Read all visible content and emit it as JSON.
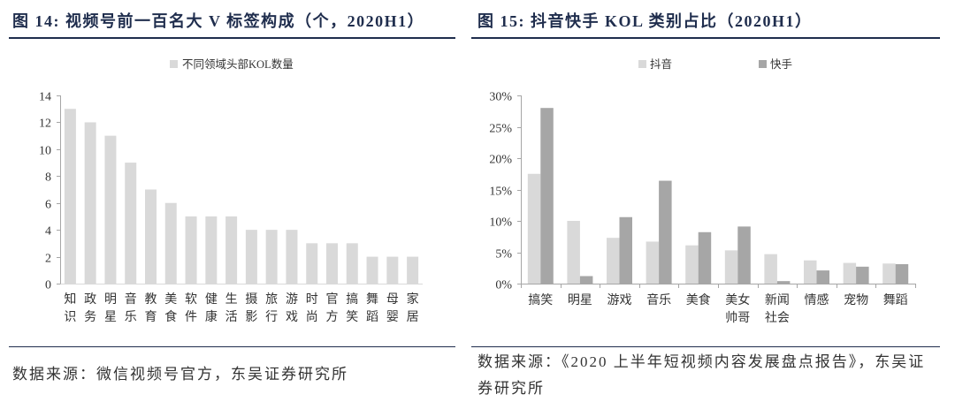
{
  "chart_data": [
    {
      "type": "bar",
      "title": "图 14: 视频号前一百名大 V 标签构成（个，2020H1）",
      "categories": [
        "知识",
        "政务",
        "明星",
        "音乐",
        "教育",
        "美食",
        "软件",
        "健康",
        "生活",
        "摄影",
        "旅行",
        "游戏",
        "时尚",
        "官方",
        "搞笑",
        "舞蹈",
        "母婴",
        "家居"
      ],
      "series": [
        {
          "name": "不同领域头部KOL数量",
          "values": [
            13,
            12,
            11,
            9,
            7,
            6,
            5,
            5,
            5,
            4,
            4,
            4,
            3,
            3,
            3,
            2,
            2,
            2
          ],
          "color": "#d9d9d9"
        }
      ],
      "ylim": [
        0,
        14
      ],
      "yticks": [
        0,
        2,
        4,
        6,
        8,
        10,
        12,
        14
      ],
      "ytick_labels": [
        "0",
        "2",
        "4",
        "6",
        "8",
        "10",
        "12",
        "14"
      ],
      "legend": "top-center",
      "grid": false
    },
    {
      "type": "bar",
      "title": "图 15: 抖音快手 KOL 类别占比（2020H1）",
      "categories": [
        "搞笑",
        "明星",
        "游戏",
        "音乐",
        "美食",
        "美女帅哥",
        "新闻社会",
        "情感",
        "宠物",
        "舞蹈"
      ],
      "series": [
        {
          "name": "抖音",
          "values": [
            17.5,
            10.0,
            7.3,
            6.7,
            6.1,
            5.3,
            4.7,
            3.7,
            3.3,
            3.2
          ],
          "color": "#d9d9d9"
        },
        {
          "name": "快手",
          "values": [
            28.0,
            1.2,
            10.6,
            16.4,
            8.2,
            9.1,
            0.4,
            2.1,
            2.7,
            3.1
          ],
          "color": "#a6a6a6"
        }
      ],
      "ylim": [
        0,
        30
      ],
      "yticks": [
        0,
        5,
        10,
        15,
        20,
        25,
        30
      ],
      "ytick_labels": [
        "0%",
        "5%",
        "10%",
        "15%",
        "20%",
        "25%",
        "30%"
      ],
      "legend": "top-center",
      "grid": false
    }
  ],
  "sources": {
    "left": "数据来源：微信视频号官方，东吴证券研究所",
    "right_lines": [
      "数据来源：《2020 上半年短视频内容发展盘点报告》，东吴证",
      "券研究所"
    ]
  },
  "colors": {
    "title": "#1f2d4d",
    "rule": "#1f2d4d",
    "axis": "#a6a6a6",
    "left_x_axis": "#d9d9d9",
    "tick_text": "#333333",
    "source_text": "#333333"
  }
}
